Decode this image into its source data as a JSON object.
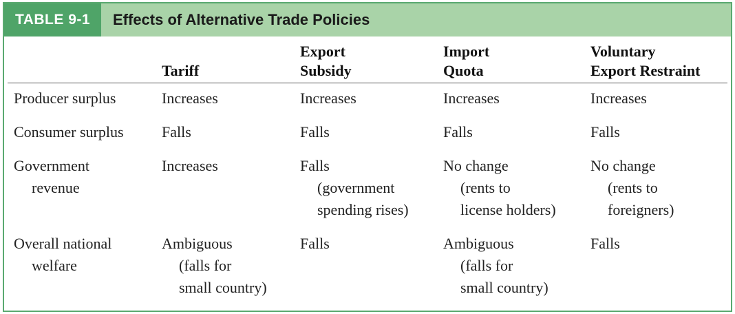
{
  "table": {
    "label": "TABLE 9-1",
    "title": "Effects of Alternative Trade Policies",
    "columns": [
      {
        "line1": "",
        "line2": "Tariff"
      },
      {
        "line1": "Export",
        "line2": "Subsidy"
      },
      {
        "line1": "Import",
        "line2": "Quota"
      },
      {
        "line1": "Voluntary",
        "line2": "Export Restraint"
      }
    ],
    "rows": [
      {
        "label": [
          "Producer surplus"
        ],
        "cells": [
          [
            "Increases"
          ],
          [
            "Increases"
          ],
          [
            "Increases"
          ],
          [
            "Increases"
          ]
        ]
      },
      {
        "label": [
          "Consumer surplus"
        ],
        "cells": [
          [
            "Falls"
          ],
          [
            "Falls"
          ],
          [
            "Falls"
          ],
          [
            "Falls"
          ]
        ]
      },
      {
        "label": [
          "Government",
          "revenue"
        ],
        "cells": [
          [
            "Increases"
          ],
          [
            "Falls",
            "(government",
            "spending rises)"
          ],
          [
            "No change",
            "(rents to",
            "license holders)"
          ],
          [
            "No change",
            "(rents to",
            "foreigners)"
          ]
        ]
      },
      {
        "label": [
          "Overall national",
          "welfare"
        ],
        "cells": [
          [
            "Ambiguous",
            "(falls for",
            "small country)"
          ],
          [
            "Falls"
          ],
          [
            "Ambiguous",
            "(falls for",
            "small country)"
          ],
          [
            "Falls"
          ]
        ]
      }
    ]
  }
}
